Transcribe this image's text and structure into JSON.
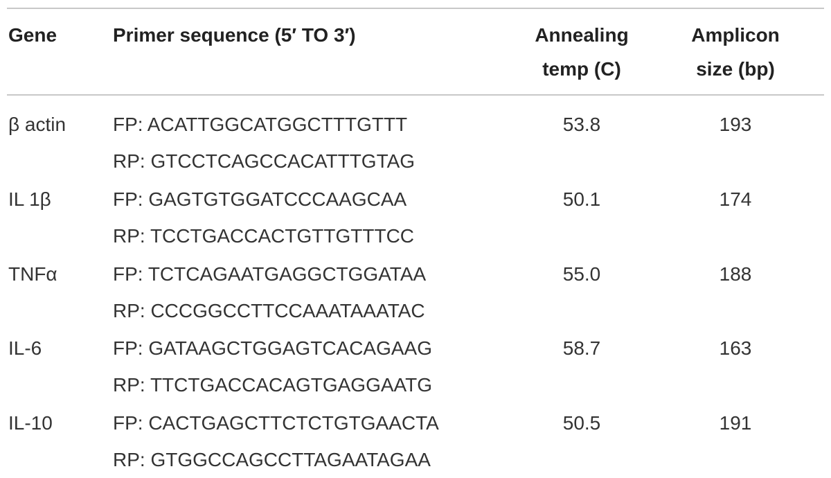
{
  "table": {
    "header": [
      [
        "Gene"
      ],
      [
        "Primer sequence (5′ TO 3′)"
      ],
      [
        "Annealing",
        "temp (C)"
      ],
      [
        "Amplicon",
        "size (bp)"
      ]
    ],
    "rows": [
      {
        "gene": "β actin",
        "fp": "FP: ACATTGGCATGGCTTTGTTT",
        "rp": "RP: GTCCTCAGCCACATTTGTAG",
        "temp": "53.8",
        "size": "193"
      },
      {
        "gene": "IL 1β",
        "fp": "FP: GAGTGTGGATCCCAAGCAA",
        "rp": "RP: TCCTGACCACTGTTGTTTCC",
        "temp": "50.1",
        "size": "174"
      },
      {
        "gene": "TNFα",
        "fp": "FP: TCTCAGAATGAGGCTGGATAA",
        "rp": "RP: CCCGGCCTTCCAAATAAATAC",
        "temp": "55.0",
        "size": "188"
      },
      {
        "gene": "IL-6",
        "fp": "FP: GATAAGCTGGAGTCACAGAAG",
        "rp": "RP: TTCTGACCACAGTGAGGAATG",
        "temp": "58.7",
        "size": "163"
      },
      {
        "gene": "IL-10",
        "fp": "FP: CACTGAGCTTCTCTGTGAACTA",
        "rp": "RP: GTGGCCAGCCTTAGAATAGAA",
        "temp": "50.5",
        "size": "191"
      }
    ]
  }
}
